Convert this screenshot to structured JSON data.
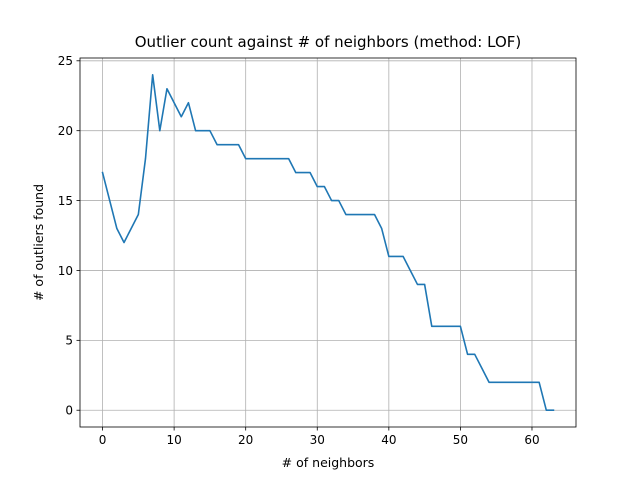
{
  "chart_data": {
    "type": "line",
    "title": "Outlier count against # of neighbors (method: LOF)",
    "xlabel": "# of neighbors",
    "ylabel": "# of outliers found",
    "xlim": [
      -3.15,
      66.15
    ],
    "ylim": [
      -1.2,
      25.2
    ],
    "xticks": [
      0,
      10,
      20,
      30,
      40,
      50,
      60
    ],
    "yticks": [
      0,
      5,
      10,
      15,
      20,
      25
    ],
    "grid": true,
    "legend": null,
    "series": [
      {
        "color": "#1f77b4",
        "x": [
          0,
          1,
          2,
          3,
          4,
          5,
          6,
          7,
          8,
          9,
          10,
          11,
          12,
          13,
          14,
          15,
          16,
          17,
          18,
          19,
          20,
          21,
          22,
          23,
          24,
          25,
          26,
          27,
          28,
          29,
          30,
          31,
          32,
          33,
          34,
          35,
          36,
          37,
          38,
          39,
          40,
          41,
          42,
          43,
          44,
          45,
          46,
          47,
          48,
          49,
          50,
          51,
          52,
          53,
          54,
          55,
          56,
          57,
          58,
          59,
          60,
          61,
          62,
          63
        ],
        "y": [
          17,
          15,
          13,
          12,
          13,
          14,
          18,
          24,
          20,
          23,
          22,
          21,
          22,
          20,
          20,
          20,
          19,
          19,
          19,
          19,
          18,
          18,
          18,
          18,
          18,
          18,
          18,
          17,
          17,
          17,
          16,
          16,
          15,
          15,
          14,
          14,
          14,
          14,
          14,
          13,
          11,
          11,
          11,
          10,
          9,
          9,
          6,
          6,
          6,
          6,
          6,
          4,
          4,
          3,
          2,
          2,
          2,
          2,
          2,
          2,
          2,
          2,
          0,
          0
        ]
      }
    ]
  }
}
